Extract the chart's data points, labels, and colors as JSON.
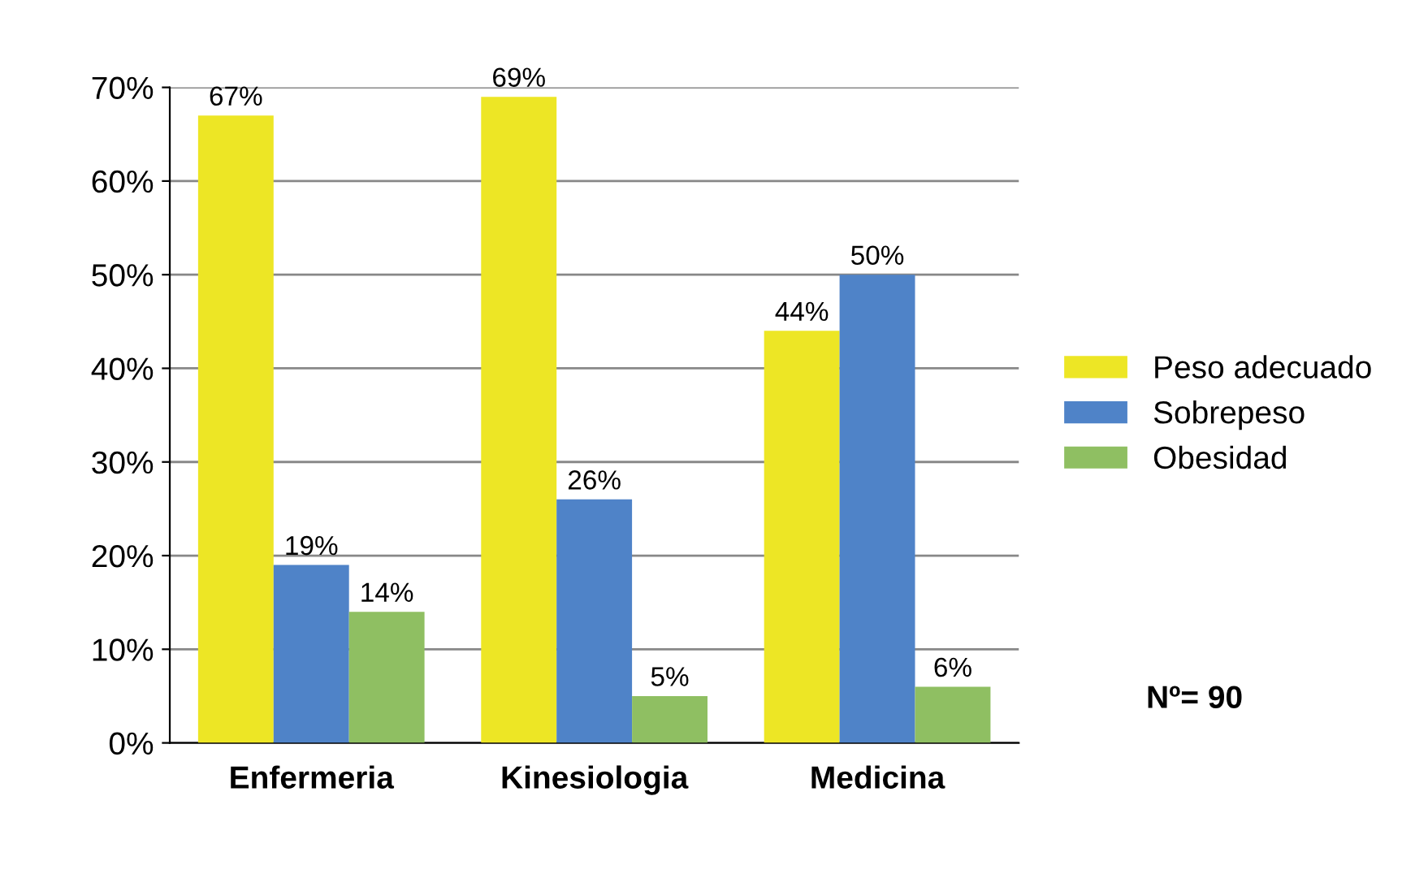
{
  "chart_data": {
    "type": "bar",
    "categories": [
      "Enfermeria",
      "Kinesiologia",
      "Medicina"
    ],
    "series": [
      {
        "name": "Peso adecuado",
        "color": "#ede625",
        "values": [
          67,
          69,
          44
        ],
        "value_labels": [
          "67%",
          "69%",
          "44%"
        ]
      },
      {
        "name": "Sobrepeso",
        "color": "#4f83c8",
        "values": [
          19,
          26,
          50
        ],
        "value_labels": [
          "19%",
          "26%",
          "50%"
        ]
      },
      {
        "name": "Obesidad",
        "color": "#8fbf62",
        "values": [
          14,
          5,
          6
        ],
        "value_labels": [
          "14%",
          "5%",
          "6%"
        ]
      }
    ],
    "ylim": [
      0,
      70
    ],
    "yticks": [
      {
        "value": 0,
        "label": "0%"
      },
      {
        "value": 10,
        "label": "10%"
      },
      {
        "value": 20,
        "label": "20%"
      },
      {
        "value": 30,
        "label": "30%"
      },
      {
        "value": 40,
        "label": "40%"
      },
      {
        "value": 50,
        "label": "50%"
      },
      {
        "value": 60,
        "label": "60%"
      },
      {
        "value": 70,
        "label": "70%"
      }
    ],
    "grid": "y",
    "legend": "right",
    "annotations": [
      "Nº= 90"
    ]
  }
}
